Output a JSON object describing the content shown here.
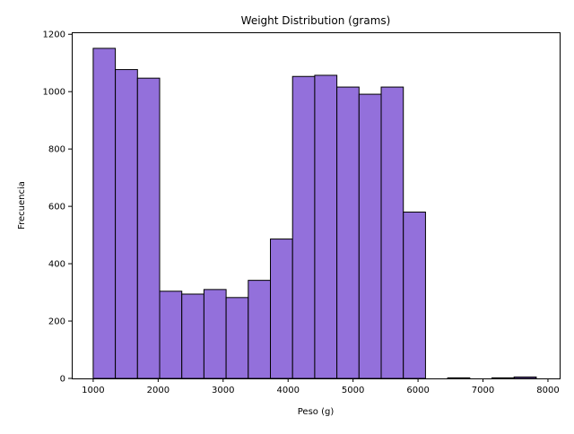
{
  "chart_data": {
    "type": "bar",
    "title": "Weight Distribution (grams)",
    "xlabel": "Peso (g)",
    "ylabel": "Frecuencia",
    "xlim": [
      670,
      8180
    ],
    "ylim": [
      0,
      1207
    ],
    "x_ticks": [
      1000,
      2000,
      3000,
      4000,
      5000,
      6000,
      7000,
      8000
    ],
    "y_ticks": [
      0,
      200,
      400,
      600,
      800,
      1000,
      1200
    ],
    "bin_width": 341,
    "bins": [
      {
        "start": 1000,
        "value": 1151
      },
      {
        "start": 1341,
        "value": 1077
      },
      {
        "start": 1682,
        "value": 1047
      },
      {
        "start": 2023,
        "value": 304
      },
      {
        "start": 2364,
        "value": 294
      },
      {
        "start": 2705,
        "value": 310
      },
      {
        "start": 3046,
        "value": 282
      },
      {
        "start": 3387,
        "value": 342
      },
      {
        "start": 3728,
        "value": 486
      },
      {
        "start": 4069,
        "value": 1053
      },
      {
        "start": 4410,
        "value": 1057
      },
      {
        "start": 4751,
        "value": 1016
      },
      {
        "start": 5092,
        "value": 991
      },
      {
        "start": 5433,
        "value": 1016
      },
      {
        "start": 5774,
        "value": 580
      },
      {
        "start": 6115,
        "value": 0
      },
      {
        "start": 6456,
        "value": 2
      },
      {
        "start": 6797,
        "value": 0
      },
      {
        "start": 7138,
        "value": 2
      },
      {
        "start": 7479,
        "value": 5
      }
    ],
    "grid": false,
    "bar_color": "#9370DB",
    "edge_color": "#000000"
  }
}
